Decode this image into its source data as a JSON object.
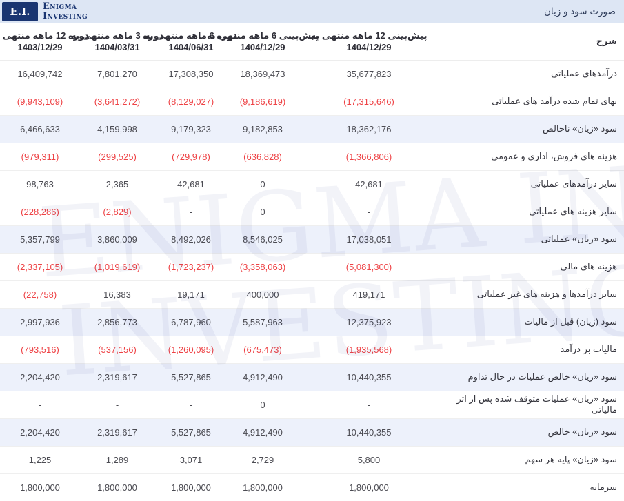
{
  "brand": {
    "initials": "E.I.",
    "name_line1": "Enigma",
    "name_line2": "Investing"
  },
  "header": {
    "title": "صورت سود و زیان"
  },
  "watermark": {
    "line1": "ENIGMA INVESTING",
    "line2": "INVESTING"
  },
  "colors": {
    "brand_navy": "#1a3571",
    "topbar_bg": "#dde6f4",
    "highlight_row_bg": "#edf1fb",
    "negative_red": "#ee4245",
    "number_gray": "#4b4b52"
  },
  "table": {
    "desc_header": "شرح",
    "columns": [
      {
        "label": "پیش‌بینی 12 ماهه منتهی به",
        "date": "1404/12/29"
      },
      {
        "label": "پیش‌بینی 6 ماهه منتهی به",
        "date": "1404/12/29"
      },
      {
        "label": "دوره 6 ماهه منتهی به",
        "date": "1404/06/31"
      },
      {
        "label": "دوره 3 ماهه منتهی به",
        "date": "1404/03/31"
      },
      {
        "label": "دوره 12 ماهه منتهی به",
        "date": "1403/12/29"
      }
    ],
    "rows": [
      {
        "label": "درآمدهای عملیاتی",
        "highlight": false,
        "values": [
          "35,677,823",
          "18,369,473",
          "17,308,350",
          "7,801,270",
          "16,409,742"
        ]
      },
      {
        "label": "بهای تمام شده درآمد های عملیاتی",
        "highlight": false,
        "values": [
          "(17,315,646)",
          "(9,186,619)",
          "(8,129,027)",
          "(3,641,272)",
          "(9,943,109)"
        ]
      },
      {
        "label": "سود «زیان» ناخالص",
        "highlight": true,
        "values": [
          "18,362,176",
          "9,182,853",
          "9,179,323",
          "4,159,998",
          "6,466,633"
        ]
      },
      {
        "label": "هزینه های فروش، اداری و عمومی",
        "highlight": false,
        "values": [
          "(1,366,806)",
          "(636,828)",
          "(729,978)",
          "(299,525)",
          "(979,311)"
        ]
      },
      {
        "label": "سایر درآمدهای عملیاتی",
        "highlight": false,
        "values": [
          "42,681",
          "0",
          "42,681",
          "2,365",
          "98,763"
        ]
      },
      {
        "label": "سایر هزینه های عملیاتی",
        "highlight": false,
        "values": [
          "-",
          "0",
          "-",
          "(2,829)",
          "(228,286)"
        ]
      },
      {
        "label": "سود «زیان» عملیاتی",
        "highlight": true,
        "values": [
          "17,038,051",
          "8,546,025",
          "8,492,026",
          "3,860,009",
          "5,357,799"
        ]
      },
      {
        "label": "هزینه های مالی",
        "highlight": false,
        "values": [
          "(5,081,300)",
          "(3,358,063)",
          "(1,723,237)",
          "(1,019,619)",
          "(2,337,105)"
        ]
      },
      {
        "label": "سایر درآمدها و هزینه های غیر عملیاتی",
        "highlight": false,
        "values": [
          "419,171",
          "400,000",
          "19,171",
          "16,383",
          "(22,758)"
        ]
      },
      {
        "label": "سود (زیان) قبل از مالیات",
        "highlight": true,
        "values": [
          "12,375,923",
          "5,587,963",
          "6,787,960",
          "2,856,773",
          "2,997,936"
        ]
      },
      {
        "label": "مالیات بر درآمد",
        "highlight": false,
        "values": [
          "(1,935,568)",
          "(675,473)",
          "(1,260,095)",
          "(537,156)",
          "(793,516)"
        ]
      },
      {
        "label": "سود «زیان» خالص عملیات در حال تداوم",
        "highlight": true,
        "values": [
          "10,440,355",
          "4,912,490",
          "5,527,865",
          "2,319,617",
          "2,204,420"
        ]
      },
      {
        "label": "سود «زیان» عملیات متوقف شده پس از اثر مالیاتی",
        "highlight": false,
        "values": [
          "-",
          "0",
          "-",
          "-",
          "-"
        ]
      },
      {
        "label": "سود «زیان» خالص",
        "highlight": true,
        "values": [
          "10,440,355",
          "4,912,490",
          "5,527,865",
          "2,319,617",
          "2,204,420"
        ]
      },
      {
        "label": "سود «زیان» پایه هر سهم",
        "highlight": false,
        "values": [
          "5,800",
          "2,729",
          "3,071",
          "1,289",
          "1,225"
        ]
      },
      {
        "label": "سرمایه",
        "highlight": false,
        "values": [
          "1,800,000",
          "1,800,000",
          "1,800,000",
          "1,800,000",
          "1,800,000"
        ]
      }
    ]
  }
}
